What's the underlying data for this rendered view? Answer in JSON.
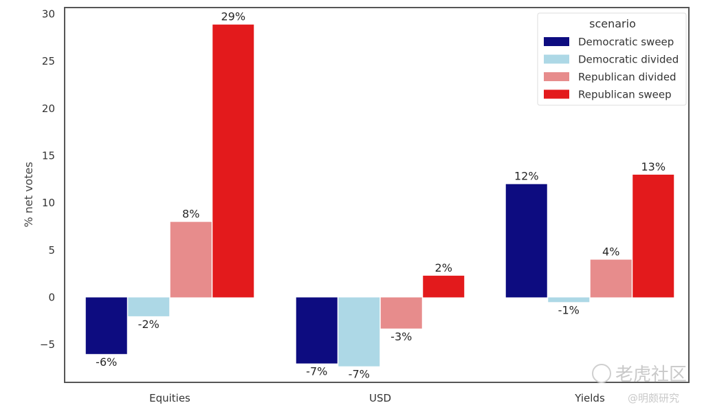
{
  "chart_data": {
    "type": "bar",
    "categories": [
      "Equities",
      "USD",
      "Yields"
    ],
    "series": [
      {
        "name": "Democratic sweep",
        "values": [
          -6,
          -7,
          12
        ],
        "labels": [
          "-6%",
          "-7%",
          "12%"
        ],
        "color": "#0d0c80"
      },
      {
        "name": "Democratic divided",
        "values": [
          -2,
          -7.3,
          -0.5
        ],
        "labels": [
          "-2%",
          "-7%",
          "-1%"
        ],
        "color": "#add8e6"
      },
      {
        "name": "Republican divided",
        "values": [
          8,
          -3.3,
          4
        ],
        "labels": [
          "8%",
          "-3%",
          "4%"
        ],
        "color": "#e78c8c"
      },
      {
        "name": "Republican sweep",
        "values": [
          28.9,
          2.3,
          13
        ],
        "labels": [
          "29%",
          "2%",
          "13%"
        ],
        "color": "#e31a1c"
      }
    ],
    "title": "",
    "xlabel": "",
    "ylabel": "% net votes",
    "ylim": [
      -9,
      30.7
    ],
    "yticks": [
      30,
      25,
      20,
      15,
      10,
      5,
      0,
      -5
    ],
    "ytick_labels": [
      "30",
      "25",
      "20",
      "15",
      "10",
      "5",
      "0",
      "−5"
    ],
    "legend": {
      "title": "scenario",
      "placement": "top-right"
    },
    "grid": false
  },
  "watermark": {
    "main": "老虎社区",
    "sub": "@明颇研究"
  }
}
